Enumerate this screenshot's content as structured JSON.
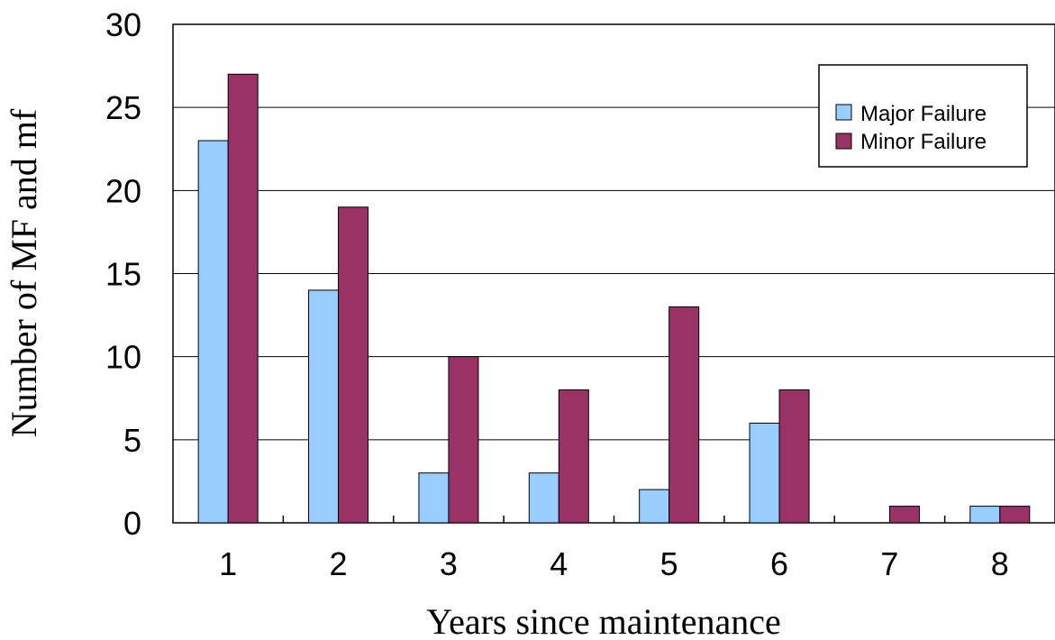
{
  "chart_data": {
    "type": "bar",
    "categories": [
      "1",
      "2",
      "3",
      "4",
      "5",
      "6",
      "7",
      "8"
    ],
    "series": [
      {
        "name": "Major Failure",
        "color": "#99ccff",
        "values": [
          23,
          14,
          3,
          3,
          2,
          6,
          0,
          1
        ]
      },
      {
        "name": "Minor Failure",
        "color": "#993366",
        "values": [
          27,
          19,
          10,
          8,
          13,
          8,
          1,
          1
        ]
      }
    ],
    "xlabel": "Years since maintenance",
    "ylabel": "Number of MF and mf",
    "ylim": [
      0,
      30
    ],
    "yticks": [
      0,
      5,
      10,
      15,
      20,
      25,
      30
    ],
    "grid": true,
    "legend_position": "top-right"
  }
}
